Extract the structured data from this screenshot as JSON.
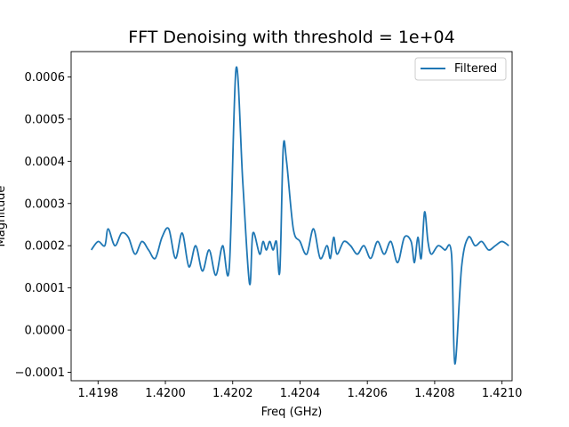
{
  "chart_data": {
    "type": "line",
    "title": "FFT Denoising with threshold = 1e+04",
    "xlabel": "Freq (GHz)",
    "ylabel": "Magnitude",
    "xlim": [
      1.41972,
      1.42103
    ],
    "ylim": [
      -0.00012,
      0.00066
    ],
    "xticks": [
      {
        "value": 1.4198,
        "label": "1.4198"
      },
      {
        "value": 1.42,
        "label": "1.4200"
      },
      {
        "value": 1.4202,
        "label": "1.4202"
      },
      {
        "value": 1.4204,
        "label": "1.4204"
      },
      {
        "value": 1.4206,
        "label": "1.4206"
      },
      {
        "value": 1.4208,
        "label": "1.4208"
      },
      {
        "value": 1.421,
        "label": "1.4210"
      }
    ],
    "yticks": [
      {
        "value": -0.0001,
        "label": "−0.0001"
      },
      {
        "value": 0.0,
        "label": "0.0000"
      },
      {
        "value": 0.0001,
        "label": "0.0001"
      },
      {
        "value": 0.0002,
        "label": "0.0002"
      },
      {
        "value": 0.0003,
        "label": "0.0003"
      },
      {
        "value": 0.0004,
        "label": "0.0004"
      },
      {
        "value": 0.0005,
        "label": "0.0005"
      },
      {
        "value": 0.0006,
        "label": "0.0006"
      }
    ],
    "grid": false,
    "legend": {
      "position": "top-right"
    },
    "series": [
      {
        "name": "Filtered",
        "color": "#1f77b4",
        "x": [
          1.41978,
          1.4198,
          1.41982,
          1.41983,
          1.41985,
          1.41987,
          1.41989,
          1.41991,
          1.41993,
          1.41995,
          1.41997,
          1.41999,
          1.42001,
          1.42003,
          1.42005,
          1.42007,
          1.42009,
          1.42011,
          1.42013,
          1.42015,
          1.42017,
          1.42019,
          1.42021,
          1.42023,
          1.42025,
          1.42026,
          1.42028,
          1.42029,
          1.4203,
          1.42031,
          1.42032,
          1.42033,
          1.42034,
          1.42035,
          1.42036,
          1.42038,
          1.4204,
          1.42042,
          1.42044,
          1.42046,
          1.42048,
          1.42049,
          1.4205,
          1.42051,
          1.42053,
          1.42055,
          1.42057,
          1.42059,
          1.42061,
          1.42063,
          1.42065,
          1.42067,
          1.42069,
          1.42071,
          1.42073,
          1.42074,
          1.42075,
          1.42076,
          1.42077,
          1.42078,
          1.42079,
          1.42081,
          1.42083,
          1.42085,
          1.42086,
          1.42088,
          1.4209,
          1.42092,
          1.42094,
          1.42096,
          1.42098,
          1.421,
          1.42102
        ],
        "y": [
          0.00019,
          0.00021,
          0.0002,
          0.00024,
          0.0002,
          0.00023,
          0.00022,
          0.00018,
          0.00021,
          0.00019,
          0.00017,
          0.00022,
          0.00024,
          0.00017,
          0.00023,
          0.00015,
          0.0002,
          0.00014,
          0.00019,
          0.00013,
          0.0002,
          0.00015,
          0.00062,
          0.00035,
          0.00011,
          0.00023,
          0.00018,
          0.00021,
          0.00019,
          0.00021,
          0.00019,
          0.00021,
          0.00014,
          0.00043,
          0.0004,
          0.00024,
          0.00021,
          0.00018,
          0.00024,
          0.00017,
          0.0002,
          0.00017,
          0.00022,
          0.00018,
          0.00021,
          0.0002,
          0.00018,
          0.0002,
          0.00017,
          0.00021,
          0.00018,
          0.00021,
          0.00016,
          0.00022,
          0.00021,
          0.00016,
          0.00022,
          0.00017,
          0.00028,
          0.00021,
          0.00018,
          0.0002,
          0.00019,
          0.00018,
          -8e-05,
          0.00015,
          0.00022,
          0.0002,
          0.00021,
          0.00019,
          0.0002,
          0.00021,
          0.0002
        ]
      }
    ]
  }
}
